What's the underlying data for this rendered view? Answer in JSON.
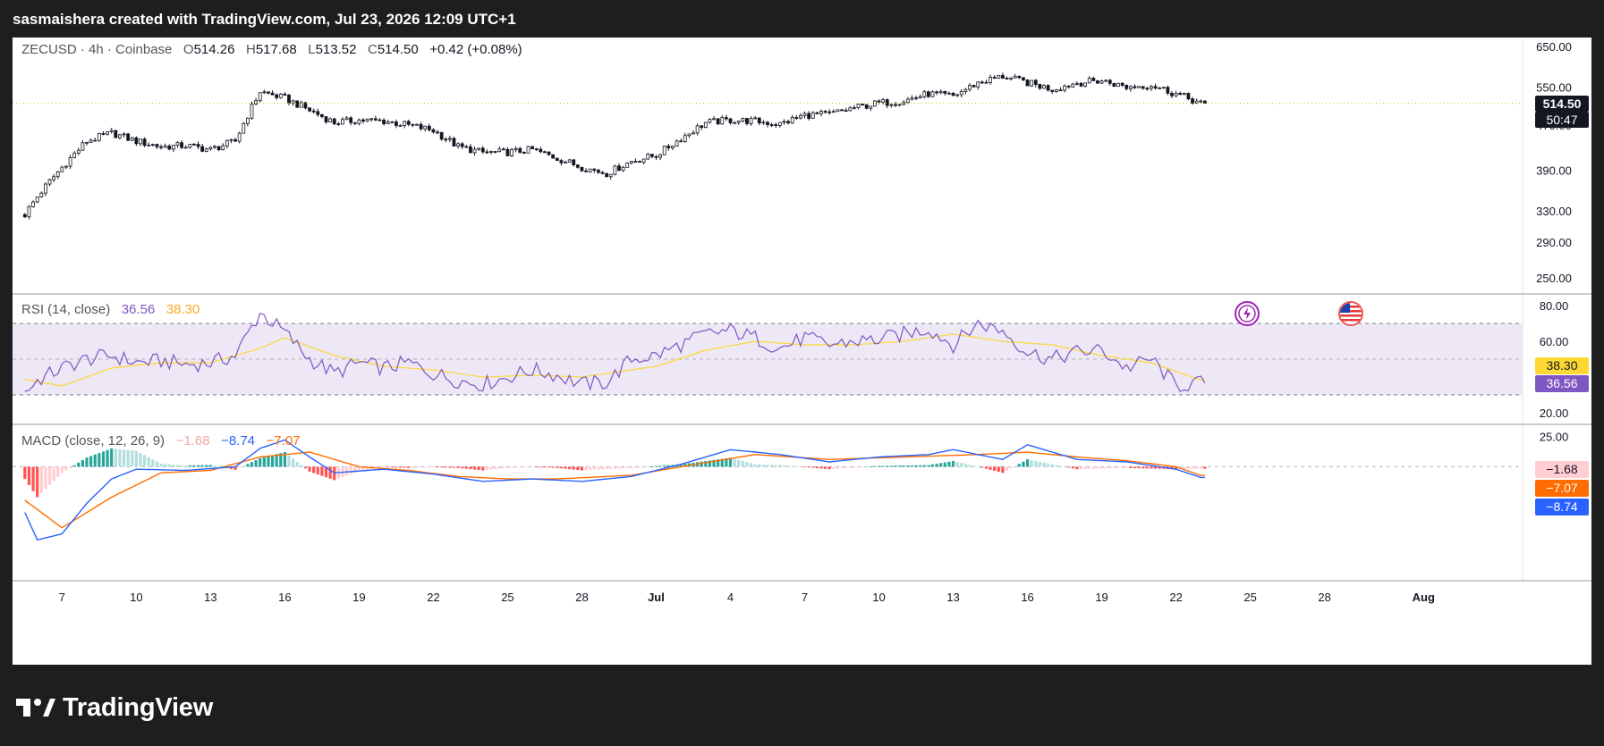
{
  "header": {
    "attribution": "sasmaishera created with TradingView.com, Jul 23, 2026 12:09 UTC+1"
  },
  "footer": {
    "logo_text": "TradingView"
  },
  "main_legend": {
    "symbol": "ZECUSD · 4h · Coinbase",
    "open_label": "O",
    "open": "514.26",
    "high_label": "H",
    "high": "517.68",
    "low_label": "L",
    "low": "513.52",
    "close_label": "C",
    "close": "514.50",
    "change": "+0.42 (+0.08%)"
  },
  "price_tag": {
    "price": "514.50",
    "countdown": "50:47"
  },
  "rsi_legend": {
    "label": "RSI (14, close)",
    "rsi": "36.56",
    "ma": "38.30"
  },
  "macd_legend": {
    "label": "MACD (close, 12, 26, 9)",
    "hist": "−1.68",
    "macd": "−8.74",
    "signal": "−7.07"
  },
  "axis_tags": {
    "rsi_ma": "38.30",
    "rsi": "36.56",
    "hist": "−1.68",
    "signal": "−7.07",
    "macd": "−8.74"
  },
  "events": [
    "lightning-event-icon",
    "us-flag-event-icon"
  ],
  "colors": {
    "up": "#26a69a",
    "down": "#ef5350",
    "candle": "#131722",
    "rsi": "#7e57c2",
    "rsi_ma": "#fdd835",
    "macd": "#2962ff",
    "signal": "#ff6d00",
    "rsi_band": "#ede7f6"
  },
  "chart_data": [
    {
      "type": "candlestick",
      "title": "ZECUSD · 4h · Coinbase",
      "y_scale": "log",
      "y_ticks": [
        "250.00",
        "290.00",
        "330.00",
        "390.00",
        "470.00",
        "550.00",
        "650.00"
      ],
      "x_ticks": [
        "7",
        "10",
        "13",
        "16",
        "19",
        "22",
        "25",
        "28",
        "Jul",
        "4",
        "7",
        "10",
        "13",
        "16",
        "19",
        "22",
        "25",
        "28",
        "Aug"
      ],
      "x_domain": [
        "2026-06-05",
        "2026-08-05"
      ],
      "last_price": 514.5,
      "close_by_date": [
        [
          "2026-06-05",
          300
        ],
        [
          "2026-06-06",
          350
        ],
        [
          "2026-06-07",
          395
        ],
        [
          "2026-06-08",
          440
        ],
        [
          "2026-06-09",
          455
        ],
        [
          "2026-06-10",
          440
        ],
        [
          "2026-06-11",
          430
        ],
        [
          "2026-06-12",
          432
        ],
        [
          "2026-06-13",
          425
        ],
        [
          "2026-06-14",
          440
        ],
        [
          "2026-06-15",
          540
        ],
        [
          "2026-06-16",
          525
        ],
        [
          "2026-06-17",
          500
        ],
        [
          "2026-06-18",
          475
        ],
        [
          "2026-06-19",
          480
        ],
        [
          "2026-06-20",
          478
        ],
        [
          "2026-06-21",
          470
        ],
        [
          "2026-06-22",
          460
        ],
        [
          "2026-06-23",
          430
        ],
        [
          "2026-06-24",
          420
        ],
        [
          "2026-06-25",
          420
        ],
        [
          "2026-06-26",
          425
        ],
        [
          "2026-06-27",
          410
        ],
        [
          "2026-06-28",
          395
        ],
        [
          "2026-06-29",
          385
        ],
        [
          "2026-06-30",
          405
        ],
        [
          "2026-07-01",
          415
        ],
        [
          "2026-07-02",
          445
        ],
        [
          "2026-07-03",
          475
        ],
        [
          "2026-07-04",
          480
        ],
        [
          "2026-07-05",
          478
        ],
        [
          "2026-07-06",
          472
        ],
        [
          "2026-07-07",
          490
        ],
        [
          "2026-07-08",
          492
        ],
        [
          "2026-07-09",
          505
        ],
        [
          "2026-07-10",
          515
        ],
        [
          "2026-07-11",
          520
        ],
        [
          "2026-07-12",
          535
        ],
        [
          "2026-07-13",
          530
        ],
        [
          "2026-07-14",
          560
        ],
        [
          "2026-07-15",
          575
        ],
        [
          "2026-07-16",
          560
        ],
        [
          "2026-07-17",
          545
        ],
        [
          "2026-07-18",
          560
        ],
        [
          "2026-07-19",
          565
        ],
        [
          "2026-07-20",
          550
        ],
        [
          "2026-07-21",
          555
        ],
        [
          "2026-07-22",
          535
        ],
        [
          "2026-07-23",
          514.5
        ]
      ]
    },
    {
      "type": "line",
      "title": "RSI (14, close)",
      "y_ticks": [
        "20.00",
        "60.00",
        "80.00"
      ],
      "y_domain": [
        14,
        86
      ],
      "bands": [
        30,
        50,
        70
      ],
      "series": [
        {
          "name": "RSI",
          "values_by_date": [
            [
              "2026-06-05",
              25
            ],
            [
              "2026-06-06",
              38
            ],
            [
              "2026-06-07",
              45
            ],
            [
              "2026-06-08",
              50
            ],
            [
              "2026-06-09",
              52
            ],
            [
              "2026-06-10",
              48
            ],
            [
              "2026-06-11",
              49
            ],
            [
              "2026-06-12",
              47
            ],
            [
              "2026-06-13",
              48
            ],
            [
              "2026-06-14",
              52
            ],
            [
              "2026-06-15",
              76
            ],
            [
              "2026-06-16",
              65
            ],
            [
              "2026-06-17",
              50
            ],
            [
              "2026-06-18",
              42
            ],
            [
              "2026-06-19",
              48
            ],
            [
              "2026-06-20",
              45
            ],
            [
              "2026-06-21",
              48
            ],
            [
              "2026-06-22",
              42
            ],
            [
              "2026-06-23",
              38
            ],
            [
              "2026-06-24",
              36
            ],
            [
              "2026-06-25",
              40
            ],
            [
              "2026-06-26",
              44
            ],
            [
              "2026-06-27",
              41
            ],
            [
              "2026-06-28",
              36
            ],
            [
              "2026-06-29",
              37
            ],
            [
              "2026-06-30",
              50
            ],
            [
              "2026-07-01",
              52
            ],
            [
              "2026-07-02",
              58
            ],
            [
              "2026-07-03",
              64
            ],
            [
              "2026-07-04",
              66
            ],
            [
              "2026-07-05",
              62
            ],
            [
              "2026-07-06",
              56
            ],
            [
              "2026-07-07",
              62
            ],
            [
              "2026-07-08",
              58
            ],
            [
              "2026-07-09",
              60
            ],
            [
              "2026-07-10",
              61
            ],
            [
              "2026-07-11",
              64
            ],
            [
              "2026-07-12",
              67
            ],
            [
              "2026-07-13",
              58
            ],
            [
              "2026-07-14",
              70
            ],
            [
              "2026-07-15",
              66
            ],
            [
              "2026-07-16",
              54
            ],
            [
              "2026-07-17",
              50
            ],
            [
              "2026-07-18",
              54
            ],
            [
              "2026-07-19",
              55
            ],
            [
              "2026-07-20",
              45
            ],
            [
              "2026-07-21",
              50
            ],
            [
              "2026-07-22",
              35
            ],
            [
              "2026-07-23",
              36.56
            ]
          ]
        },
        {
          "name": "MA",
          "values_by_date": [
            [
              "2026-06-05",
              40
            ],
            [
              "2026-06-07",
              35
            ],
            [
              "2026-06-09",
              45
            ],
            [
              "2026-06-11",
              48
            ],
            [
              "2026-06-13",
              48
            ],
            [
              "2026-06-15",
              56
            ],
            [
              "2026-06-16",
              62
            ],
            [
              "2026-06-18",
              52
            ],
            [
              "2026-06-20",
              46
            ],
            [
              "2026-06-22",
              44
            ],
            [
              "2026-06-24",
              40
            ],
            [
              "2026-06-26",
              41
            ],
            [
              "2026-06-28",
              40
            ],
            [
              "2026-07-01",
              46
            ],
            [
              "2026-07-03",
              55
            ],
            [
              "2026-07-05",
              60
            ],
            [
              "2026-07-07",
              58
            ],
            [
              "2026-07-09",
              58
            ],
            [
              "2026-07-11",
              60
            ],
            [
              "2026-07-13",
              64
            ],
            [
              "2026-07-15",
              60
            ],
            [
              "2026-07-17",
              58
            ],
            [
              "2026-07-19",
              52
            ],
            [
              "2026-07-21",
              48
            ],
            [
              "2026-07-23",
              38.3
            ]
          ]
        }
      ]
    },
    {
      "type": "bar+line",
      "title": "MACD (close, 12, 26, 9)",
      "y_ticks": [
        "25.00"
      ],
      "y_domain": [
        -70,
        34
      ],
      "series": [
        {
          "name": "MACD",
          "values_by_date": [
            [
              "2026-06-05",
              -15
            ],
            [
              "2026-06-06",
              -60
            ],
            [
              "2026-06-07",
              -55
            ],
            [
              "2026-06-08",
              -30
            ],
            [
              "2026-06-09",
              -10
            ],
            [
              "2026-06-10",
              -2
            ],
            [
              "2026-06-12",
              -3
            ],
            [
              "2026-06-14",
              0
            ],
            [
              "2026-06-15",
              15
            ],
            [
              "2026-06-16",
              22
            ],
            [
              "2026-06-17",
              8
            ],
            [
              "2026-06-18",
              -5
            ],
            [
              "2026-06-20",
              -2
            ],
            [
              "2026-06-22",
              -6
            ],
            [
              "2026-06-24",
              -12
            ],
            [
              "2026-06-26",
              -10
            ],
            [
              "2026-06-28",
              -12
            ],
            [
              "2026-06-30",
              -8
            ],
            [
              "2026-07-02",
              2
            ],
            [
              "2026-07-04",
              14
            ],
            [
              "2026-07-06",
              10
            ],
            [
              "2026-07-08",
              4
            ],
            [
              "2026-07-10",
              8
            ],
            [
              "2026-07-12",
              10
            ],
            [
              "2026-07-13",
              14
            ],
            [
              "2026-07-15",
              6
            ],
            [
              "2026-07-16",
              18
            ],
            [
              "2026-07-18",
              6
            ],
            [
              "2026-07-20",
              4
            ],
            [
              "2026-07-22",
              -2
            ],
            [
              "2026-07-23",
              -8.74
            ]
          ]
        },
        {
          "name": "Signal",
          "values_by_date": [
            [
              "2026-06-05",
              -20
            ],
            [
              "2026-06-07",
              -50
            ],
            [
              "2026-06-09",
              -25
            ],
            [
              "2026-06-11",
              -5
            ],
            [
              "2026-06-13",
              -3
            ],
            [
              "2026-06-15",
              8
            ],
            [
              "2026-06-17",
              12
            ],
            [
              "2026-06-19",
              0
            ],
            [
              "2026-06-21",
              -3
            ],
            [
              "2026-06-23",
              -8
            ],
            [
              "2026-06-25",
              -10
            ],
            [
              "2026-06-27",
              -10
            ],
            [
              "2026-06-30",
              -7
            ],
            [
              "2026-07-02",
              0
            ],
            [
              "2026-07-05",
              10
            ],
            [
              "2026-07-08",
              6
            ],
            [
              "2026-07-11",
              8
            ],
            [
              "2026-07-14",
              10
            ],
            [
              "2026-07-16",
              12
            ],
            [
              "2026-07-18",
              8
            ],
            [
              "2026-07-20",
              5
            ],
            [
              "2026-07-22",
              0
            ],
            [
              "2026-07-23",
              -7.07
            ]
          ]
        },
        {
          "name": "Histogram",
          "last_value": -1.68
        }
      ]
    }
  ]
}
